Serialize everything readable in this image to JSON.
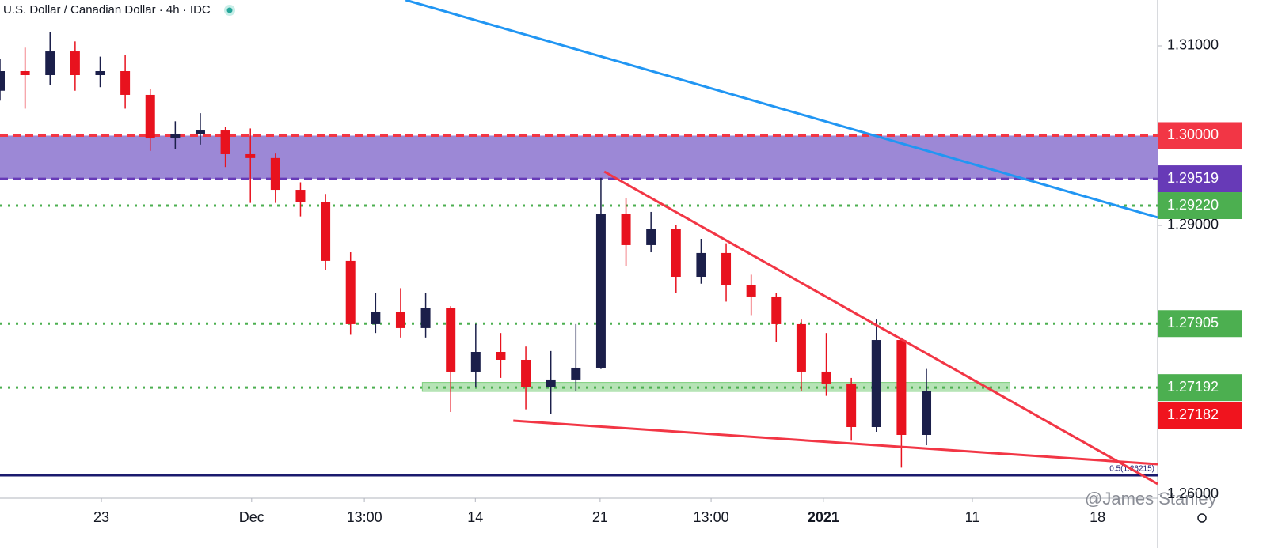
{
  "chart_data": {
    "type": "candlestick",
    "title": "U.S. Dollar / Canadian Dollar · 4h · IDC",
    "watermark": "@James Stanley",
    "xlim": [
      0,
      277.4
    ],
    "ylim": [
      1.2596,
      1.31511
    ],
    "xticks": [
      {
        "value": 24.3,
        "label": "23"
      },
      {
        "value": 60.3,
        "label": "Dec"
      },
      {
        "value": 87.3,
        "label": "13:00"
      },
      {
        "value": 113.9,
        "label": "14"
      },
      {
        "value": 143.8,
        "label": "21"
      },
      {
        "value": 170.4,
        "label": "13:00"
      },
      {
        "value": 197.3,
        "label": "2021"
      },
      {
        "value": 233,
        "label": "11"
      },
      {
        "value": 263,
        "label": "18"
      }
    ],
    "yticks": [
      {
        "value": 1.31,
        "label": "1.31000"
      },
      {
        "value": 1.29,
        "label": "1.29000"
      },
      {
        "value": 1.26,
        "label": "1.26000"
      }
    ],
    "up_color": "#1b1f4a",
    "down_color": "#e8121e",
    "x": [
      0,
      6,
      12,
      18,
      24,
      30,
      36,
      42,
      48,
      54,
      60,
      66,
      72,
      78,
      84,
      90,
      96,
      102,
      108,
      114,
      120,
      126,
      132,
      138,
      144,
      150,
      156,
      162,
      168,
      174,
      180,
      186,
      192,
      198,
      204,
      210,
      216,
      222
    ],
    "open": [
      1.305,
      1.30718,
      1.30674,
      1.30938,
      1.30674,
      1.30718,
      1.30454,
      1.29969,
      1.30013,
      1.30057,
      1.29793,
      1.2975,
      1.29396,
      1.29264,
      1.28604,
      1.27899,
      1.28031,
      1.27855,
      1.28075,
      1.2737,
      1.2759,
      1.27502,
      1.27194,
      1.27282,
      1.27414,
      1.29132,
      1.2878,
      1.28956,
      1.28427,
      1.28692,
      1.28339,
      1.28207,
      1.27899,
      1.2737,
      1.27238,
      1.26753,
      1.27722,
      1.26665
    ],
    "high": [
      1.3085,
      1.3098,
      1.3115,
      1.3105,
      1.3088,
      1.309,
      1.3052,
      1.3016,
      1.3025,
      1.301,
      1.3008,
      1.298,
      1.2948,
      1.2935,
      1.287,
      1.2825,
      1.283,
      1.2825,
      1.281,
      1.279,
      1.278,
      1.2765,
      1.276,
      1.279,
      1.2953,
      1.293,
      1.2915,
      1.29,
      1.2885,
      1.288,
      1.2845,
      1.2825,
      1.2795,
      1.278,
      1.273,
      1.2795,
      1.2775,
      1.274
    ],
    "low": [
      1.3039,
      1.303,
      1.3056,
      1.305,
      1.3054,
      1.303,
      1.2983,
      1.2985,
      1.299,
      1.2965,
      1.2925,
      1.2925,
      1.291,
      1.285,
      1.2778,
      1.278,
      1.2775,
      1.2775,
      1.2692,
      1.272,
      1.273,
      1.2695,
      1.269,
      1.2715,
      1.274,
      1.2855,
      1.287,
      1.2825,
      1.2835,
      1.2815,
      1.28,
      1.277,
      1.2715,
      1.271,
      1.266,
      1.267,
      1.263,
      1.2655
    ],
    "close": [
      1.30718,
      1.30674,
      1.30938,
      1.30674,
      1.30718,
      1.30454,
      1.29969,
      1.30013,
      1.30057,
      1.29793,
      1.2975,
      1.29396,
      1.29264,
      1.28604,
      1.27899,
      1.28031,
      1.27855,
      1.28075,
      1.2737,
      1.2759,
      1.27502,
      1.27194,
      1.27282,
      1.27414,
      1.29132,
      1.2878,
      1.28956,
      1.28427,
      1.28692,
      1.28339,
      1.28207,
      1.27899,
      1.2737,
      1.27238,
      1.26753,
      1.27722,
      1.26665,
      1.2715
    ],
    "zones": [
      {
        "from": 1.29519,
        "to": 1.3,
        "color": "#9c88d6"
      },
      {
        "from": 1.2715,
        "to": 1.2725,
        "x": [
          101.2,
          242
        ],
        "color": "#b6e3b6"
      }
    ],
    "levels": [
      {
        "value": 1.3,
        "label": "1.30000",
        "color": "#f23645",
        "style": "dashed"
      },
      {
        "value": 1.29519,
        "label": "1.29519",
        "color": "#673ab7",
        "style": "dashed"
      },
      {
        "value": 1.2922,
        "label": "1.29220",
        "color": "#4caf50",
        "style": "dotted"
      },
      {
        "value": 1.27905,
        "label": "1.27905",
        "color": "#4caf50",
        "style": "dotted"
      },
      {
        "value": 1.27192,
        "label": "1.27192",
        "color": "#4caf50",
        "style": "dotted"
      },
      {
        "value": 1.27182,
        "label": "1.27182",
        "color": "#f0141e",
        "style": "none"
      }
    ],
    "fib": {
      "value": 1.26215,
      "label": "0.5(1.26215)",
      "color": "#1a1a6e"
    },
    "trendlines": [
      {
        "x": [
          97.2,
          277.4
        ],
        "y": [
          1.31511,
          1.29088
        ],
        "color": "#2196f3"
      },
      {
        "x": [
          144.8,
          277.4
        ],
        "y": [
          1.29599,
          1.26119
        ],
        "color": "#f23645"
      },
      {
        "x": [
          123,
          277.4
        ],
        "y": [
          1.26824,
          1.26339
        ],
        "color": "#f23645"
      }
    ]
  }
}
